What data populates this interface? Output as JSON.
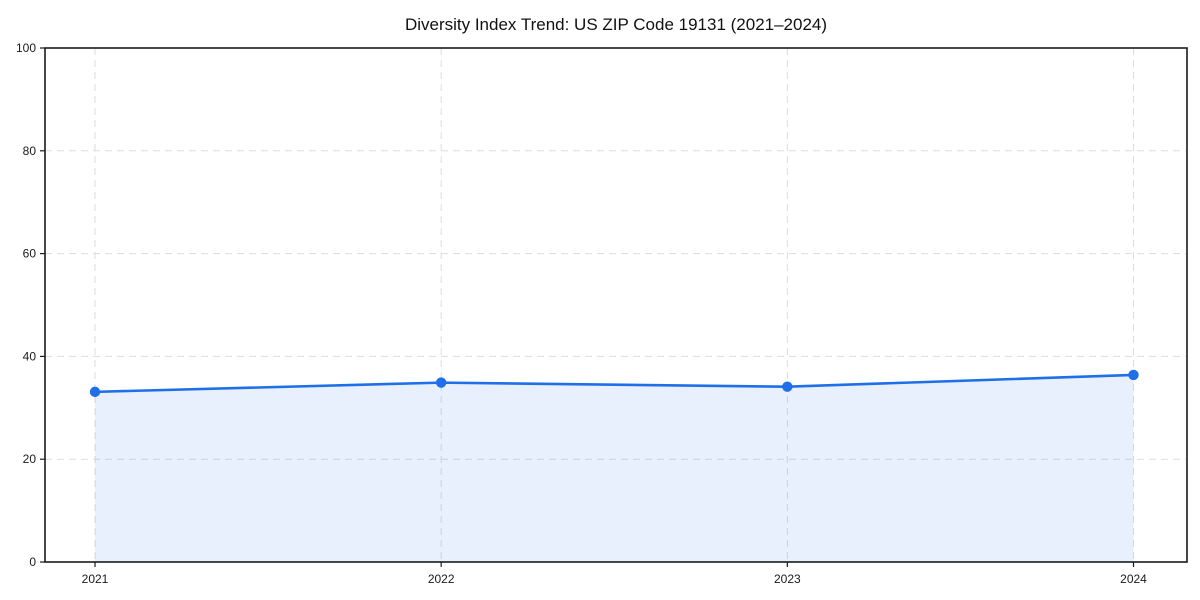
{
  "page": {
    "title": "Diversity Index Trend: US ZIP Code 19131 (2021–2024)"
  },
  "chart_data": {
    "type": "area",
    "title": "Diversity Index Trend: US ZIP Code 19131 (2021–2024)",
    "categories": [
      "2021",
      "2022",
      "2023",
      "2024"
    ],
    "series": [
      {
        "name": "Diversity Index",
        "values": [
          33.1,
          34.9,
          34.1,
          36.4
        ]
      }
    ],
    "xlabel": "",
    "ylabel": "",
    "ylim": [
      0,
      100
    ],
    "yticks": [
      0,
      20,
      40,
      60,
      80,
      100
    ],
    "grid": "dashed",
    "grid_color": "#dddddd",
    "legend": "none",
    "line_color": "#1f6fe8",
    "fill_color": "#1f6fe8",
    "fill_opacity": 0.1,
    "marker": "circle",
    "axis_color": "#1a1a1a"
  }
}
